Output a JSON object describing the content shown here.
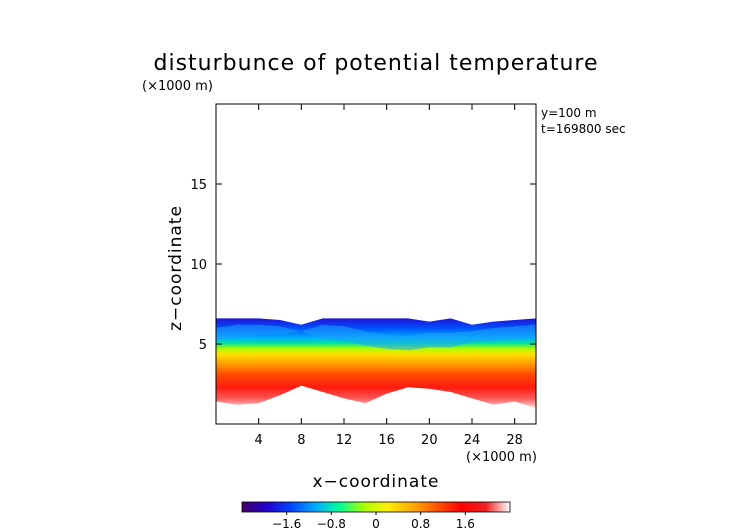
{
  "chart_data": {
    "type": "heatmap",
    "title": "disturbunce of potential temperature",
    "xlabel": "x−coordinate",
    "ylabel": "z−coordinate",
    "x_unit": "(×1000 m)",
    "y_unit": "(×1000 m)",
    "annotations": [
      "y=100 m",
      "t=169800 sec"
    ],
    "xlim": [
      0,
      30
    ],
    "ylim": [
      0,
      20
    ],
    "x_ticks": [
      4,
      8,
      12,
      16,
      20,
      24,
      28
    ],
    "x_tick_labels": [
      "4",
      "8",
      "12",
      "16",
      "20",
      "24",
      "28"
    ],
    "y_ticks": [
      5,
      10,
      15
    ],
    "y_tick_labels": [
      "5",
      "10",
      "15"
    ],
    "colorbar": {
      "range": [
        -2.4,
        2.4
      ],
      "ticks": [
        -1.6,
        -0.8,
        0,
        0.8,
        1.6
      ],
      "tick_labels": [
        "−1.6",
        "−0.8",
        "0",
        "0.8",
        "1.6"
      ],
      "colors": [
        "#440066",
        "#2200cc",
        "#0044ff",
        "#00aaff",
        "#00ff99",
        "#aaff00",
        "#ffee00",
        "#ffaa00",
        "#ff5500",
        "#ff0000",
        "#ee2222",
        "#ffffff"
      ]
    },
    "field": {
      "x": [
        0,
        2,
        4,
        6,
        8,
        10,
        12,
        14,
        16,
        18,
        20,
        22,
        24,
        26,
        28,
        30
      ],
      "top_z": [
        6.6,
        6.6,
        6.6,
        6.5,
        6.2,
        6.6,
        6.6,
        6.6,
        6.6,
        6.6,
        6.4,
        6.6,
        6.2,
        6.4,
        6.5,
        6.6
      ],
      "bottom_z": [
        1.4,
        1.2,
        1.3,
        1.8,
        2.4,
        2.0,
        1.6,
        1.3,
        1.9,
        2.3,
        2.2,
        2.0,
        1.6,
        1.2,
        1.4,
        1.0
      ],
      "interface_z": [
        5.0,
        5.1,
        5.3,
        5.3,
        5.5,
        5.0,
        4.9,
        4.6,
        4.4,
        4.3,
        4.5,
        4.5,
        4.8,
        4.9,
        5.0,
        5.1
      ],
      "upper_value": -1.4,
      "lower_value": 1.5
    }
  }
}
